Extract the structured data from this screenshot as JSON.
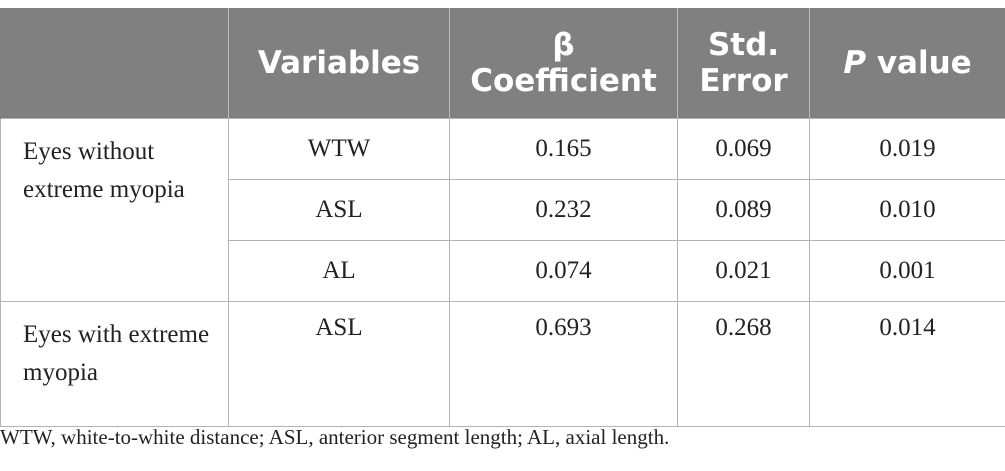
{
  "table": {
    "headers": {
      "group": "",
      "variables": "Variables",
      "beta_line1": "β",
      "beta_line2": "Coefficient",
      "se_line1": "Std.",
      "se_line2": "Error",
      "p_italic": "P",
      "p_rest": " value"
    },
    "groups": [
      {
        "label": "Eyes without extreme myopia",
        "rows": [
          {
            "variable": "WTW",
            "beta": "0.165",
            "se": "0.069",
            "p": "0.019"
          },
          {
            "variable": "ASL",
            "beta": "0.232",
            "se": "0.089",
            "p": "0.010"
          },
          {
            "variable": "AL",
            "beta": "0.074",
            "se": "0.021",
            "p": "0.001"
          }
        ]
      },
      {
        "label": "Eyes with extreme myopia",
        "rows": [
          {
            "variable": "ASL",
            "beta": "0.693",
            "se": "0.268",
            "p": "0.014"
          }
        ]
      }
    ]
  },
  "footnote": "WTW, white-to-white distance; ASL, anterior segment length; AL, axial length."
}
